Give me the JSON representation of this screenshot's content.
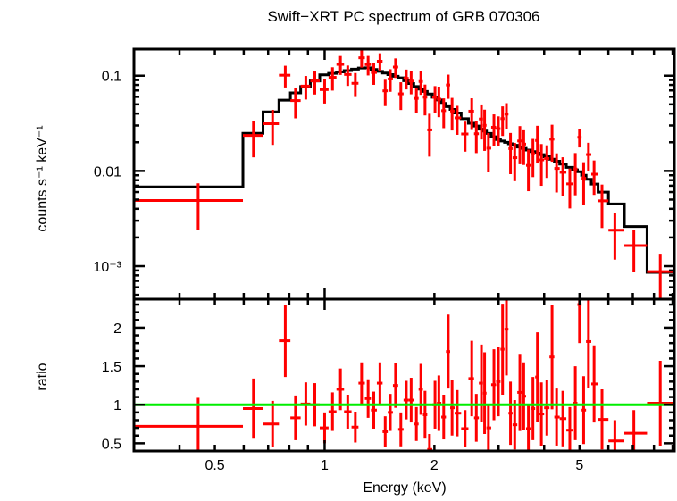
{
  "chart_data": {
    "type": "scatter",
    "title": "Swift−XRT PC spectrum of GRB 070306",
    "xlabel": "Energy (keV)",
    "xscale": "log",
    "xlim": [
      0.3,
      9.1
    ],
    "x_tick_labels": [
      {
        "value": 0.5,
        "label": "0.5"
      },
      {
        "value": 1,
        "label": "1"
      },
      {
        "value": 2,
        "label": "2"
      },
      {
        "value": 5,
        "label": "5"
      }
    ],
    "top_panel": {
      "ylabel": "counts s⁻¹ keV⁻¹",
      "yscale": "log",
      "ylim": [
        0.00045,
        0.19
      ],
      "y_tick_labels": [
        {
          "value": 0.1,
          "label": "0.1"
        },
        {
          "value": 0.01,
          "label": "0.01"
        },
        {
          "value": 0.001,
          "label": "10⁻³"
        }
      ]
    },
    "bottom_panel": {
      "ylabel": "ratio",
      "ylim": [
        0.4,
        2.37
      ],
      "y_tick_labels": [
        {
          "value": 2,
          "label": "2"
        },
        {
          "value": 1.5,
          "label": "1.5"
        },
        {
          "value": 1,
          "label": "1"
        },
        {
          "value": 0.5,
          "label": "0.5"
        }
      ],
      "reference_line": 1
    },
    "colors": {
      "data": "#ff0000",
      "model": "#000000",
      "ratio_line": "#00ee00"
    },
    "model_curve": [
      [
        0.45,
        0.0068
      ],
      [
        0.638,
        0.0248
      ],
      [
        0.72,
        0.0417
      ],
      [
        0.78,
        0.0553
      ],
      [
        0.832,
        0.066
      ],
      [
        1.0,
        0.102
      ],
      [
        1.3,
        0.123
      ],
      [
        1.63,
        0.094
      ],
      [
        2.0,
        0.06
      ],
      [
        2.52,
        0.032
      ],
      [
        3.0,
        0.0213
      ],
      [
        4.0,
        0.0145
      ],
      [
        5.0,
        0.0098
      ],
      [
        5.5,
        0.0072
      ],
      [
        5.76,
        0.006
      ],
      [
        6.25,
        0.0045
      ],
      [
        7.05,
        0.0026
      ],
      [
        8.3,
        0.00086
      ]
    ],
    "first_bin_low": 0.3,
    "first_bin_high": 0.597,
    "last_bin_high": 9.1,
    "bins": {
      "energy": [
        0.45,
        0.638,
        0.72,
        0.78,
        0.832,
        0.888,
        0.94,
        1.0,
        1.051,
        1.105,
        1.157,
        1.214,
        1.263,
        1.316,
        1.364,
        1.418,
        1.466,
        1.514,
        1.565,
        1.618,
        1.675,
        1.727,
        1.785,
        1.836,
        1.885,
        1.939,
        2.008,
        2.057,
        2.121,
        2.183,
        2.236,
        2.31,
        2.428,
        2.532,
        2.606,
        2.692,
        2.746,
        2.813,
        2.913,
        2.996,
        3.076,
        3.152,
        3.234,
        3.321,
        3.431,
        3.516,
        3.621,
        3.726,
        3.833,
        3.93,
        4.069,
        4.204,
        4.326,
        4.5,
        4.703,
        4.869,
        5.0,
        5.132,
        5.291,
        5.482,
        5.763,
        6.25,
        7.046,
        8.325
      ],
      "ratio": [
        0.72,
        0.95,
        0.75,
        1.83,
        0.83,
        1.01,
        1.0,
        0.7,
        0.91,
        1.2,
        0.91,
        0.71,
        1.28,
        1.08,
        0.93,
        1.28,
        0.65,
        0.9,
        1.25,
        0.68,
        1.06,
        1.06,
        0.75,
        1.2,
        0.87,
        0.42,
        1.0,
        1.02,
        0.84,
        1.69,
        0.96,
        0.89,
        0.69,
        1.34,
        0.83,
        1.28,
        1.15,
        0.7,
        1.26,
        1.3,
        1.72,
        1.98,
        0.89,
        0.74,
        1.16,
        1.11,
        0.69,
        0.95,
        1.36,
        0.88,
        0.96,
        1.62,
        0.84,
        0.82,
        0.67,
        1.02,
        2.3,
        0.93,
        1.82,
        1.27,
        0.81,
        0.53,
        0.63,
        1.02
      ],
      "ratio_err": [
        0.37,
        0.39,
        0.3,
        0.47,
        0.29,
        0.28,
        0.28,
        0.2,
        0.25,
        0.27,
        0.22,
        0.2,
        0.27,
        0.25,
        0.24,
        0.27,
        0.2,
        0.24,
        0.29,
        0.22,
        0.25,
        0.29,
        0.22,
        0.33,
        0.31,
        0.2,
        0.31,
        0.36,
        0.29,
        0.48,
        0.36,
        0.3,
        0.24,
        0.49,
        0.31,
        0.5,
        0.53,
        0.31,
        0.46,
        0.45,
        0.59,
        0.6,
        0.41,
        0.32,
        0.5,
        0.44,
        0.32,
        0.41,
        0.58,
        0.41,
        0.36,
        0.68,
        0.37,
        0.36,
        0.3,
        0.48,
        0.5,
        0.44,
        0.6,
        0.5,
        0.39,
        0.27,
        0.3,
        0.55
      ]
    }
  }
}
